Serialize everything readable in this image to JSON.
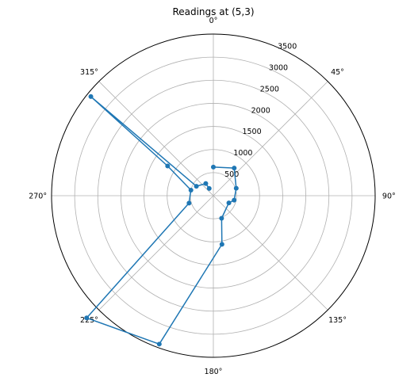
{
  "chart_data": {
    "type": "polar-line",
    "title": "Readings at (5,3)",
    "theta_direction": "clockwise",
    "theta_zero": "top",
    "angle_ticks": [
      "0°",
      "45°",
      "90°",
      "135°",
      "180°",
      "225°",
      "270°",
      "315°"
    ],
    "r_ticks": [
      500,
      1000,
      1500,
      2000,
      2500,
      3000,
      3500
    ],
    "r_tick_labels": [
      "500",
      "1000",
      "1500",
      "2000",
      "2500",
      "3000",
      "3500"
    ],
    "rlim": [
      0,
      3500
    ],
    "grid": true,
    "series_color": "#1f77b4",
    "points": [
      {
        "theta": 0,
        "r": 620
      },
      {
        "theta": 37,
        "r": 750
      },
      {
        "theta": 72,
        "r": 520
      },
      {
        "theta": 102,
        "r": 460
      },
      {
        "theta": 115,
        "r": 370
      },
      {
        "theta": 160,
        "r": 520
      },
      {
        "theta": 170,
        "r": 1070
      },
      {
        "theta": 200,
        "r": 3420
      },
      {
        "theta": 226,
        "r": 3810
      },
      {
        "theta": 253,
        "r": 550
      },
      {
        "theta": 284,
        "r": 500
      },
      {
        "theta": 303,
        "r": 1180
      },
      {
        "theta": 309,
        "r": 3410
      },
      {
        "theta": 299,
        "r": 420
      },
      {
        "theta": 328,
        "r": 310
      },
      {
        "theta": 330,
        "r": 180
      }
    ]
  }
}
